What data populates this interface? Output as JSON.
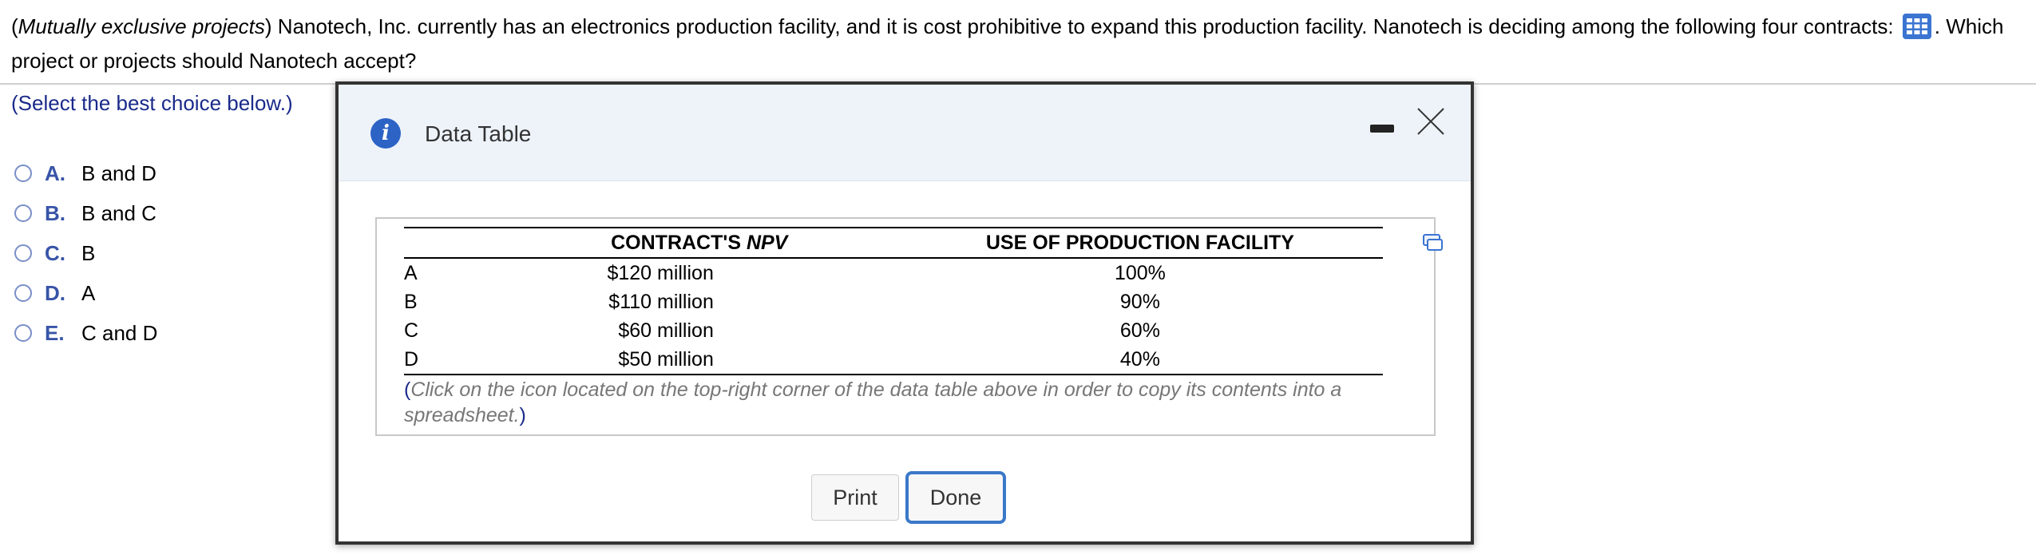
{
  "question": {
    "prefix_open": "(",
    "italic_title": "Mutually exclusive projects",
    "body": ") Nanotech, Inc. currently has an electronics production facility, and it is cost prohibitive to expand this production facility. Nanotech is deciding among the following four contracts:",
    "after_icon": ". Which project or projects should Nanotech accept?",
    "icon": "table-grid-icon"
  },
  "instruction": "(Select the best choice below.)",
  "choices": [
    {
      "letter": "A.",
      "text": "B and D"
    },
    {
      "letter": "B.",
      "text": "B and C"
    },
    {
      "letter": "C.",
      "text": "B"
    },
    {
      "letter": "D.",
      "text": "A"
    },
    {
      "letter": "E.",
      "text": "C and D"
    }
  ],
  "modal": {
    "title": "Data Table",
    "info_icon_glyph": "i",
    "table": {
      "headers": {
        "npv_prefix": "CONTRACT'S ",
        "npv_italic": "NPV",
        "use": "USE OF PRODUCTION FACILITY"
      },
      "rows": [
        {
          "name": "A",
          "npv": "$120 million",
          "use": "100%"
        },
        {
          "name": "B",
          "npv": "$110 million",
          "use": "90%"
        },
        {
          "name": "C",
          "npv": "$60 million",
          "use": "60%"
        },
        {
          "name": "D",
          "npv": "$50 million",
          "use": "40%"
        }
      ]
    },
    "note_open": "(",
    "note": "Click on the icon located on the top-right corner of the data table above in order to copy its contents into a spreadsheet.",
    "note_close": ")",
    "print_label": "Print",
    "done_label": "Done"
  },
  "colors": {
    "accent": "#3854a8",
    "info": "#2c63c5",
    "done_border": "#3a78c8"
  }
}
